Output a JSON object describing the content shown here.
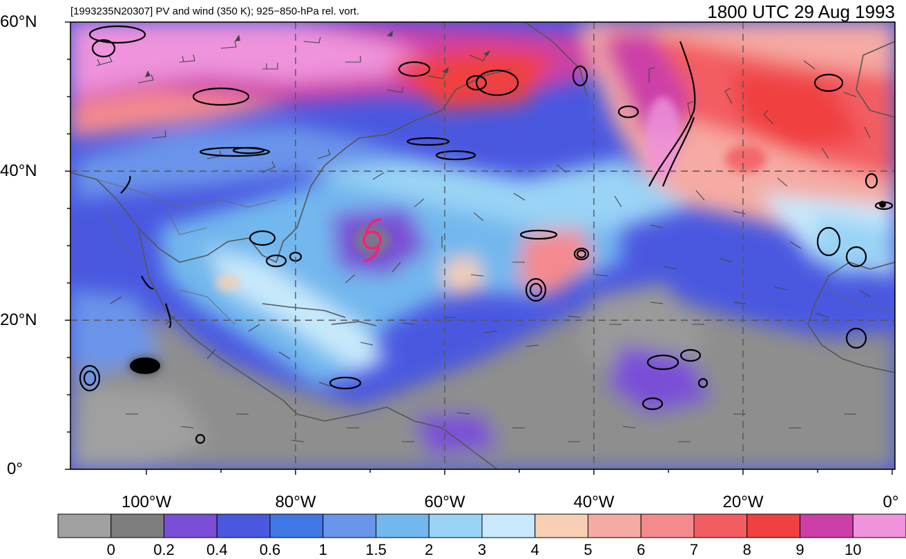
{
  "header": {
    "subtitle": "[1993235N20307] PV and wind (350 K); 925−850-hPa rel. vort.",
    "title": "1800 UTC 29 Aug 1993"
  },
  "axes": {
    "lat_labels": [
      "60°N",
      "40°N",
      "20°N",
      "0°"
    ],
    "lon_labels": [
      "100°W",
      "80°W",
      "60°W",
      "40°W",
      "20°W",
      "0°"
    ]
  },
  "colorbar": {
    "labels": [
      "0",
      "0.2",
      "0.4",
      "0.6",
      "1",
      "1.5",
      "2",
      "3",
      "4",
      "5",
      "6",
      "7",
      "8",
      "9",
      "10"
    ],
    "colors": [
      "#a0a0a0",
      "#7d7d7d",
      "#7a4fd6",
      "#4a58e0",
      "#3f78e6",
      "#6a94ea",
      "#72b7ee",
      "#99d3f5",
      "#c7e9fb",
      "#f7cfb3",
      "#f5aaa3",
      "#f48a8e",
      "#f35d62",
      "#f0403f",
      "#cc3fa7",
      "#ee93dc"
    ]
  },
  "map": {
    "lat_range": [
      0,
      60
    ],
    "lon_range": [
      -110,
      2
    ],
    "grid_lats": [
      20,
      40
    ],
    "grid_lons": [
      -80,
      -60,
      -40,
      -20
    ],
    "storm_symbol": "tropical-cyclone-icon",
    "storm_center": {
      "lat": 31,
      "lon": -70
    },
    "storm_color": "#e6297a"
  }
}
